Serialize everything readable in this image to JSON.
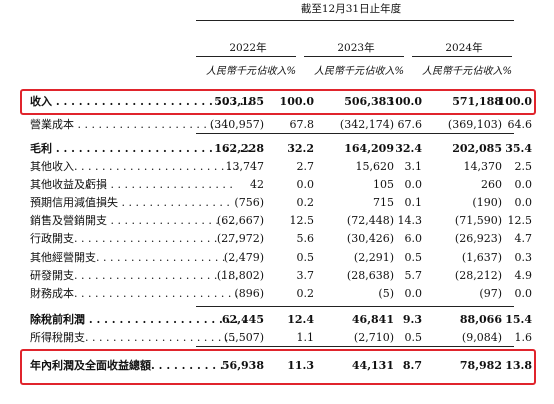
{
  "header": {
    "period": "截至12月31日止年度",
    "years": [
      "2022年",
      "2023年",
      "2024年"
    ],
    "amount_unit": "人民幣千元",
    "percent_unit": "佔收入%"
  },
  "rows": [
    {
      "label": "收入 . . . . . . . . . . . . . . . . . . . . . . . . . .",
      "bold": true,
      "v": [
        "503,185",
        "100.0",
        "506,383",
        "100.0",
        "571,188",
        "100.0"
      ]
    },
    {
      "label": "營業成本 . . . . . . . . . . . . . . . . . . . . . .",
      "bold": false,
      "v": [
        "(340,957)",
        "67.8",
        "(342,174)",
        "67.6",
        "(369,103)",
        "64.6"
      ]
    },
    {
      "label": "毛利 . . . . . . . . . . . . . . . . . . . . . . . . . .",
      "bold": true,
      "v": [
        "162,228",
        "32.2",
        "164,209",
        "32.4",
        "202,085",
        "35.4"
      ]
    },
    {
      "label": "其他收入. . . . . . . . . . . . . . . . . . . . . . . .",
      "bold": false,
      "v": [
        "13,747",
        "2.7",
        "15,620",
        "3.1",
        "14,370",
        "2.5"
      ]
    },
    {
      "label": "其他收益及虧損 . . . . . . . . . . . . . . . . . .",
      "bold": false,
      "v": [
        "42",
        "0.0",
        "105",
        "0.0",
        "260",
        "0.0"
      ]
    },
    {
      "label": "預期信用減值損失 . . . . . . . . . . . . . . . .",
      "bold": false,
      "v": [
        "(756)",
        "0.2",
        "715",
        "0.1",
        "(190)",
        "0.0"
      ]
    },
    {
      "label": "銷售及營銷開支 . . . . . . . . . . . . . . . . . .",
      "bold": false,
      "v": [
        "(62,667)",
        "12.5",
        "(72,448)",
        "14.3",
        "(71,590)",
        "12.5"
      ]
    },
    {
      "label": "行政開支. . . . . . . . . . . . . . . . . . . . . . . .",
      "bold": false,
      "v": [
        "(27,972)",
        "5.6",
        "(30,426)",
        "6.0",
        "(26,923)",
        "4.7"
      ]
    },
    {
      "label": "其他經營開支. . . . . . . . . . . . . . . . . . . .",
      "bold": false,
      "v": [
        "(2,479)",
        "0.5",
        "(2,291)",
        "0.5",
        "(1,637)",
        "0.3"
      ]
    },
    {
      "label": "研發開支. . . . . . . . . . . . . . . . . . . . . . . .",
      "bold": false,
      "v": [
        "(18,802)",
        "3.7",
        "(28,638)",
        "5.7",
        "(28,212)",
        "4.9"
      ]
    },
    {
      "label": "財務成本. . . . . . . . . . . . . . . . . . . . . . . .",
      "bold": false,
      "v": [
        "(896)",
        "0.2",
        "(5)",
        "0.0",
        "(97)",
        "0.0"
      ]
    },
    {
      "label": "除稅前利潤 . . . . . . . . . . . . . . . . . . . . .",
      "bold": true,
      "v": [
        "62,445",
        "12.4",
        "46,841",
        "9.3",
        "88,066",
        "15.4"
      ]
    },
    {
      "label": "所得稅開支. . . . . . . . . . . . . . . . . . . . . .",
      "bold": false,
      "v": [
        "(5,507)",
        "1.1",
        "(2,710)",
        "0.5",
        "(9,084)",
        "1.6"
      ]
    },
    {
      "label": "年內利潤及全面收益總額. . . . . . . . . .",
      "bold": true,
      "v": [
        "56,938",
        "11.3",
        "44,131",
        "8.7",
        "78,982",
        "13.8"
      ]
    }
  ],
  "highlight_color": "#e0242c"
}
